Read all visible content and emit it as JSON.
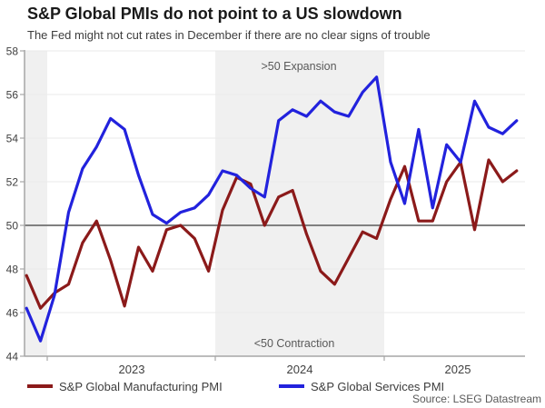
{
  "header": {
    "title": "S&P Global PMIs do not point to a US slowdown",
    "subtitle": "The Fed might not cut rates in December if there are no clear signs of trouble"
  },
  "chart_data": {
    "type": "line",
    "x_frequency": "monthly",
    "x_start": "2022-11",
    "x_end": "2025-10",
    "x_axis_year_labels": [
      "2023",
      "2024",
      "2025"
    ],
    "ylim": [
      44,
      58
    ],
    "yticks": [
      44,
      46,
      48,
      50,
      52,
      54,
      56,
      58
    ],
    "reference_line": 50,
    "grid": "horizontal-light",
    "legend_position": "bottom",
    "shaded_periods": [
      "2022-11 to 2022-12",
      "2024-01 to 2024-12"
    ],
    "annotations": [
      {
        "text": ">50 Expansion",
        "position": "top-center"
      },
      {
        "text": "<50 Contraction",
        "position": "bottom-center"
      }
    ],
    "series": [
      {
        "name": "S&P Global Manufacturing PMI",
        "color": "#8B1A1A",
        "values": [
          47.7,
          46.2,
          46.9,
          47.3,
          49.2,
          50.2,
          48.4,
          46.3,
          49.0,
          47.9,
          49.8,
          50.0,
          49.4,
          47.9,
          50.7,
          52.2,
          51.9,
          50.0,
          51.3,
          51.6,
          49.6,
          47.9,
          47.3,
          48.5,
          49.7,
          49.4,
          51.2,
          52.7,
          50.2,
          50.2,
          52.0,
          52.9,
          49.8,
          53.0,
          52.0,
          52.5
        ]
      },
      {
        "name": "S&P Global Services PMI",
        "color": "#2222DD",
        "values": [
          46.2,
          44.7,
          46.8,
          50.6,
          52.6,
          53.6,
          54.9,
          54.4,
          52.3,
          50.5,
          50.1,
          50.6,
          50.8,
          51.4,
          52.5,
          52.3,
          51.7,
          51.3,
          54.8,
          55.3,
          55.0,
          55.7,
          55.2,
          55.0,
          56.1,
          56.8,
          52.9,
          51.0,
          54.4,
          50.8,
          53.7,
          52.9,
          55.7,
          54.5,
          54.2,
          54.8
        ]
      }
    ]
  },
  "legend": {
    "items": [
      {
        "label": "S&P Global Manufacturing PMI",
        "color": "#8B1A1A"
      },
      {
        "label": "S&P Global Services PMI",
        "color": "#2222DD"
      }
    ]
  },
  "source": "Source: LSEG Datastream",
  "colors": {
    "band": "#f0f0f0",
    "grid": "#eaeaea",
    "axis": "#a6a6a6",
    "reference_line": "#808080",
    "tick_label": "#404040",
    "annotation": "#595959"
  }
}
